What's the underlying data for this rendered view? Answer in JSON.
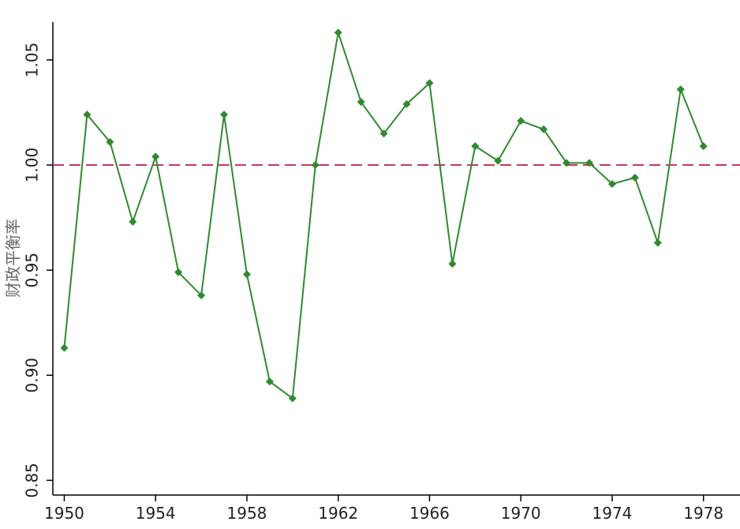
{
  "chart_data": {
    "type": "line",
    "y_label": "财政平衡率",
    "x": [
      1950,
      1951,
      1952,
      1953,
      1954,
      1955,
      1956,
      1957,
      1958,
      1959,
      1960,
      1961,
      1962,
      1963,
      1964,
      1965,
      1966,
      1967,
      1968,
      1969,
      1970,
      1971,
      1972,
      1973,
      1974,
      1975,
      1976,
      1977,
      1978
    ],
    "series": [
      {
        "color": "#2f8a2f",
        "values": [
          0.913,
          1.024,
          1.011,
          0.973,
          1.004,
          0.949,
          0.938,
          1.024,
          0.948,
          0.897,
          0.889,
          1.0,
          1.063,
          1.03,
          1.015,
          1.029,
          1.039,
          0.953,
          1.009,
          1.002,
          1.021,
          1.017,
          1.001,
          1.001,
          0.991,
          0.994,
          0.963,
          1.036,
          1.009
        ]
      }
    ],
    "xlim": [
      1949.5,
      1979.6
    ],
    "ylim": [
      0.843,
      1.068
    ],
    "xticks": [
      1950,
      1954,
      1958,
      1962,
      1966,
      1970,
      1974,
      1978
    ],
    "yticks": [
      0.85,
      {
        "value": 0.9,
        "label": "0.90"
      },
      0.95,
      {
        "value": 1,
        "label": "1.00"
      },
      1.05
    ],
    "reference_line": {
      "value": 1,
      "color": "#c8385a"
    }
  }
}
